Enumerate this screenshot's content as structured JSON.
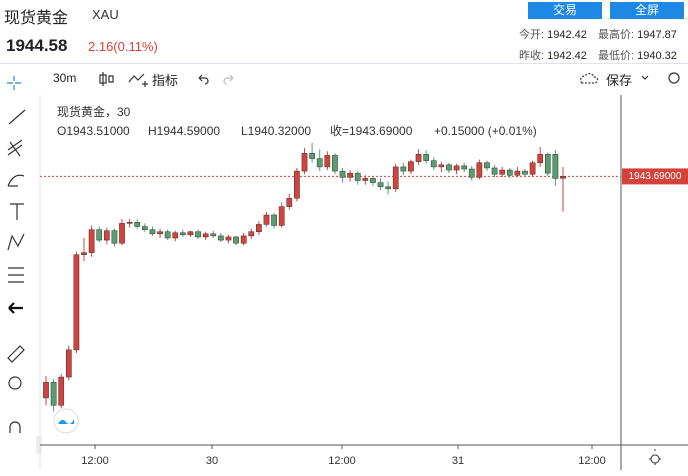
{
  "header": {
    "name": "现货黄金",
    "code": "XAU",
    "trade": "交易",
    "fullscreen": "全屏",
    "price": "1944.58",
    "change": "2.16(0.11%)",
    "stats": [
      {
        "label": "今开:",
        "value": "1942.42"
      },
      {
        "label": "最高价:",
        "value": "1947.87"
      },
      {
        "label": "昨收:",
        "value": "1942.42"
      },
      {
        "label": "最低价:",
        "value": "1940.32"
      }
    ]
  },
  "toolbar": {
    "interval": "30m",
    "indicators": "指标",
    "save": "保存"
  },
  "chart": {
    "type": "candlestick",
    "title": "现货黄金，30",
    "legend": {
      "o": "O1943.51000",
      "h": "H1944.59000",
      "l": "L1940.32000",
      "c": "收=1943.69000",
      "chg": "+0.15000 (+0.01%)"
    },
    "up_color": "#d4433b",
    "down_color": "#5a9e6f",
    "ylim": [
      1918,
      1951
    ],
    "last_price": {
      "value": 1943.69,
      "label": "1943.69000"
    },
    "xlabels": [
      "12:00",
      "30",
      "12:00",
      "31",
      "12:00"
    ],
    "candles": [
      [
        1922.5,
        1924.6,
        1921.8,
        1924.0
      ],
      [
        1924.0,
        1924.3,
        1921.2,
        1921.8
      ],
      [
        1921.8,
        1924.8,
        1921.5,
        1924.5
      ],
      [
        1924.5,
        1927.5,
        1924.2,
        1927.1
      ],
      [
        1927.1,
        1936.5,
        1926.8,
        1936.2
      ],
      [
        1936.2,
        1937.8,
        1935.6,
        1936.4
      ],
      [
        1936.4,
        1939.0,
        1936.0,
        1938.6
      ],
      [
        1938.6,
        1938.9,
        1937.4,
        1937.6
      ],
      [
        1937.6,
        1938.8,
        1937.2,
        1938.5
      ],
      [
        1938.5,
        1938.7,
        1937.0,
        1937.3
      ],
      [
        1937.3,
        1939.6,
        1937.1,
        1939.2
      ],
      [
        1939.2,
        1939.6,
        1938.8,
        1939.3
      ],
      [
        1939.3,
        1939.6,
        1938.7,
        1938.9
      ],
      [
        1938.9,
        1939.2,
        1938.4,
        1938.6
      ],
      [
        1938.6,
        1938.9,
        1938.0,
        1938.2
      ],
      [
        1938.2,
        1938.7,
        1937.8,
        1938.4
      ],
      [
        1938.4,
        1938.6,
        1937.6,
        1937.8
      ],
      [
        1937.8,
        1938.5,
        1937.5,
        1938.3
      ],
      [
        1938.3,
        1938.6,
        1937.9,
        1938.1
      ],
      [
        1938.1,
        1938.5,
        1937.9,
        1938.4
      ],
      [
        1938.4,
        1938.6,
        1937.7,
        1937.9
      ],
      [
        1937.9,
        1938.4,
        1937.6,
        1938.2
      ],
      [
        1938.2,
        1938.5,
        1937.8,
        1938.0
      ],
      [
        1938.0,
        1938.3,
        1937.4,
        1937.6
      ],
      [
        1937.6,
        1938.1,
        1937.3,
        1937.9
      ],
      [
        1937.9,
        1938.0,
        1937.1,
        1937.3
      ],
      [
        1937.3,
        1938.3,
        1937.1,
        1938.0
      ],
      [
        1938.0,
        1938.7,
        1937.7,
        1938.4
      ],
      [
        1938.4,
        1939.4,
        1938.1,
        1939.1
      ],
      [
        1939.1,
        1940.3,
        1938.9,
        1940.0
      ],
      [
        1940.0,
        1940.2,
        1938.7,
        1939.0
      ],
      [
        1939.0,
        1941.2,
        1938.8,
        1940.8
      ],
      [
        1940.8,
        1942.0,
        1940.5,
        1941.6
      ],
      [
        1941.6,
        1944.5,
        1941.3,
        1944.2
      ],
      [
        1944.2,
        1946.4,
        1943.9,
        1945.9
      ],
      [
        1945.9,
        1946.9,
        1945.0,
        1945.4
      ],
      [
        1945.4,
        1946.3,
        1944.2,
        1944.6
      ],
      [
        1944.6,
        1946.1,
        1944.3,
        1945.7
      ],
      [
        1945.7,
        1945.9,
        1943.9,
        1944.2
      ],
      [
        1944.2,
        1944.5,
        1943.1,
        1943.6
      ],
      [
        1943.6,
        1944.3,
        1943.2,
        1944.0
      ],
      [
        1944.0,
        1944.2,
        1942.9,
        1943.3
      ],
      [
        1943.3,
        1943.8,
        1942.9,
        1943.5
      ],
      [
        1943.5,
        1943.7,
        1942.8,
        1943.1
      ],
      [
        1943.1,
        1943.5,
        1942.4,
        1942.7
      ],
      [
        1942.7,
        1943.2,
        1942.0,
        1942.5
      ],
      [
        1942.5,
        1944.9,
        1942.2,
        1944.6
      ],
      [
        1944.6,
        1945.0,
        1943.8,
        1944.2
      ],
      [
        1944.2,
        1945.3,
        1943.9,
        1945.1
      ],
      [
        1945.1,
        1946.3,
        1944.8,
        1945.8
      ],
      [
        1945.8,
        1946.2,
        1944.9,
        1945.2
      ],
      [
        1945.2,
        1945.5,
        1944.3,
        1944.6
      ],
      [
        1944.6,
        1945.1,
        1944.1,
        1944.8
      ],
      [
        1944.8,
        1945.0,
        1944.0,
        1944.3
      ],
      [
        1944.3,
        1944.9,
        1943.9,
        1944.7
      ],
      [
        1944.7,
        1945.0,
        1944.1,
        1944.4
      ],
      [
        1944.4,
        1944.7,
        1943.3,
        1943.6
      ],
      [
        1943.6,
        1945.3,
        1943.4,
        1945.0
      ],
      [
        1945.0,
        1945.2,
        1944.2,
        1944.5
      ],
      [
        1944.5,
        1944.8,
        1943.6,
        1943.9
      ],
      [
        1943.9,
        1944.6,
        1943.6,
        1944.3
      ],
      [
        1944.3,
        1944.5,
        1943.5,
        1943.8
      ],
      [
        1943.8,
        1944.6,
        1943.6,
        1944.2
      ],
      [
        1944.2,
        1944.4,
        1943.7,
        1943.9
      ],
      [
        1943.9,
        1945.2,
        1943.7,
        1945.0
      ],
      [
        1945.0,
        1946.5,
        1944.6,
        1945.8
      ],
      [
        1945.8,
        1946.0,
        1943.7,
        1944.0
      ],
      [
        1945.8,
        1946.2,
        1942.8,
        1943.5
      ],
      [
        1943.51,
        1944.59,
        1940.32,
        1943.69
      ]
    ]
  }
}
